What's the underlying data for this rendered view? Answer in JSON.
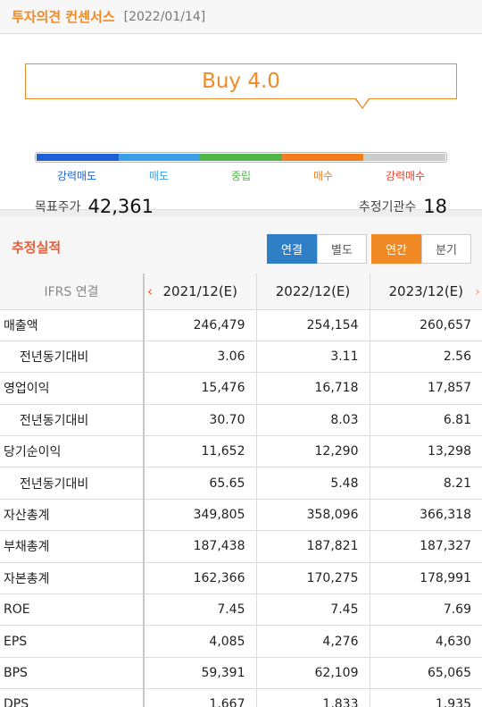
{
  "header": {
    "title": "투자의견 컨센서스",
    "date": "[2022/01/14]"
  },
  "consensus": {
    "rating_text": "Buy 4.0",
    "scale": [
      {
        "label": "강력매도",
        "color": "#1f5fd6"
      },
      {
        "label": "매도",
        "color": "#3a9ee8"
      },
      {
        "label": "중립",
        "color": "#52b54a"
      },
      {
        "label": "매수",
        "color": "#f07d1f"
      },
      {
        "label": "강력매수",
        "color": "#e8412c"
      }
    ],
    "bar_colors": [
      "#1f5fd6",
      "#3a9ee8",
      "#52b54a",
      "#f07d1f",
      "#cccccc"
    ],
    "target_price_label": "목표주가",
    "target_price": "42,361",
    "estimators_label": "추정기관수",
    "estimators": "18"
  },
  "estimates": {
    "title": "추정실적",
    "toggle_basis": [
      "연결",
      "별도"
    ],
    "toggle_period": [
      "연간",
      "분기"
    ],
    "header_first": "IFRS 연결",
    "columns": [
      "2021/12(E)",
      "2022/12(E)",
      "2023/12(E)"
    ],
    "rows": [
      {
        "label": "매출액",
        "sub": false,
        "values": [
          "246,479",
          "254,154",
          "260,657"
        ]
      },
      {
        "label": "전년동기대비",
        "sub": true,
        "values": [
          "3.06",
          "3.11",
          "2.56"
        ]
      },
      {
        "label": "영업이익",
        "sub": false,
        "values": [
          "15,476",
          "16,718",
          "17,857"
        ]
      },
      {
        "label": "전년동기대비",
        "sub": true,
        "values": [
          "30.70",
          "8.03",
          "6.81"
        ]
      },
      {
        "label": "당기순이익",
        "sub": false,
        "values": [
          "11,652",
          "12,290",
          "13,298"
        ]
      },
      {
        "label": "전년동기대비",
        "sub": true,
        "values": [
          "65.65",
          "5.48",
          "8.21"
        ]
      },
      {
        "label": "자산총계",
        "sub": false,
        "values": [
          "349,805",
          "358,096",
          "366,318"
        ]
      },
      {
        "label": "부채총계",
        "sub": false,
        "values": [
          "187,438",
          "187,821",
          "187,327"
        ]
      },
      {
        "label": "자본총계",
        "sub": false,
        "values": [
          "162,366",
          "170,275",
          "178,991"
        ]
      },
      {
        "label": "ROE",
        "sub": false,
        "values": [
          "7.45",
          "7.45",
          "7.69"
        ]
      },
      {
        "label": "EPS",
        "sub": false,
        "values": [
          "4,085",
          "4,276",
          "4,630"
        ]
      },
      {
        "label": "BPS",
        "sub": false,
        "values": [
          "59,391",
          "62,109",
          "65,065"
        ]
      },
      {
        "label": "DPS",
        "sub": false,
        "values": [
          "1,667",
          "1,833",
          "1,935"
        ]
      }
    ]
  },
  "icons": {
    "prev": "chevron-left-icon",
    "next": "chevron-right-icon"
  }
}
